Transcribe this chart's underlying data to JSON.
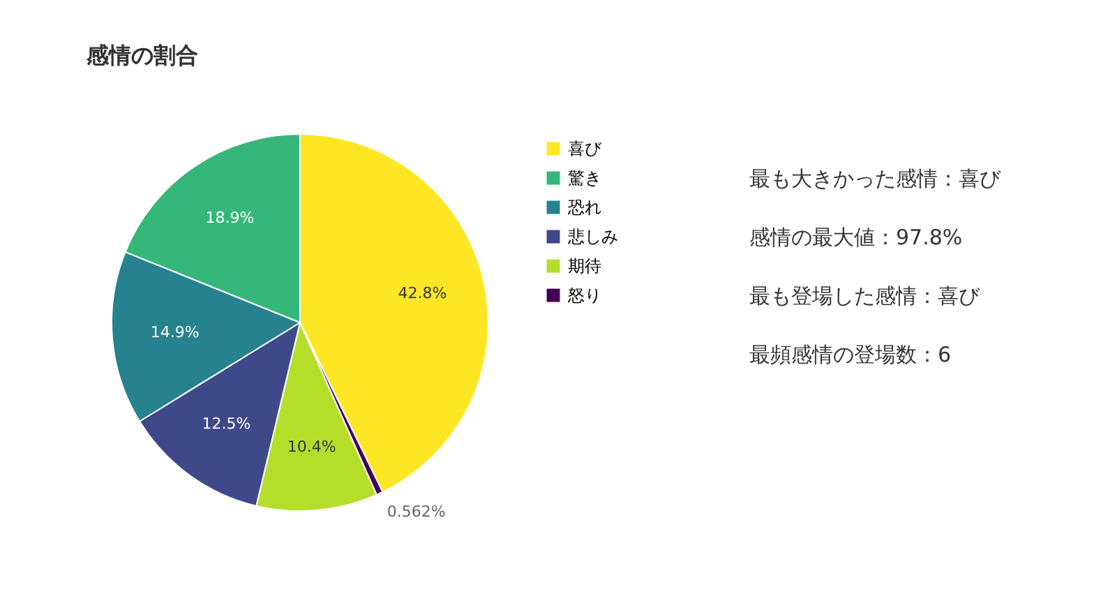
{
  "chart_data": {
    "type": "pie",
    "title": "感情の割合",
    "categories": [
      "喜び",
      "怒り",
      "期待",
      "悲しみ",
      "恐れ",
      "驚き"
    ],
    "values": [
      42.8,
      0.562,
      10.4,
      12.5,
      14.9,
      18.9
    ],
    "colors": [
      "#fde725",
      "#440154",
      "#b5de2b",
      "#3e4989",
      "#26828e",
      "#35b779"
    ],
    "value_labels": [
      "42.8%",
      "0.562%",
      "10.4%",
      "12.5%",
      "14.9%",
      "18.9%"
    ],
    "legend": "right",
    "annotations": [
      "最も大きかった感情：喜び",
      "感情の最大値：97.8%",
      "最も登場した感情：喜び",
      "最頻感情の登場数：6"
    ]
  }
}
